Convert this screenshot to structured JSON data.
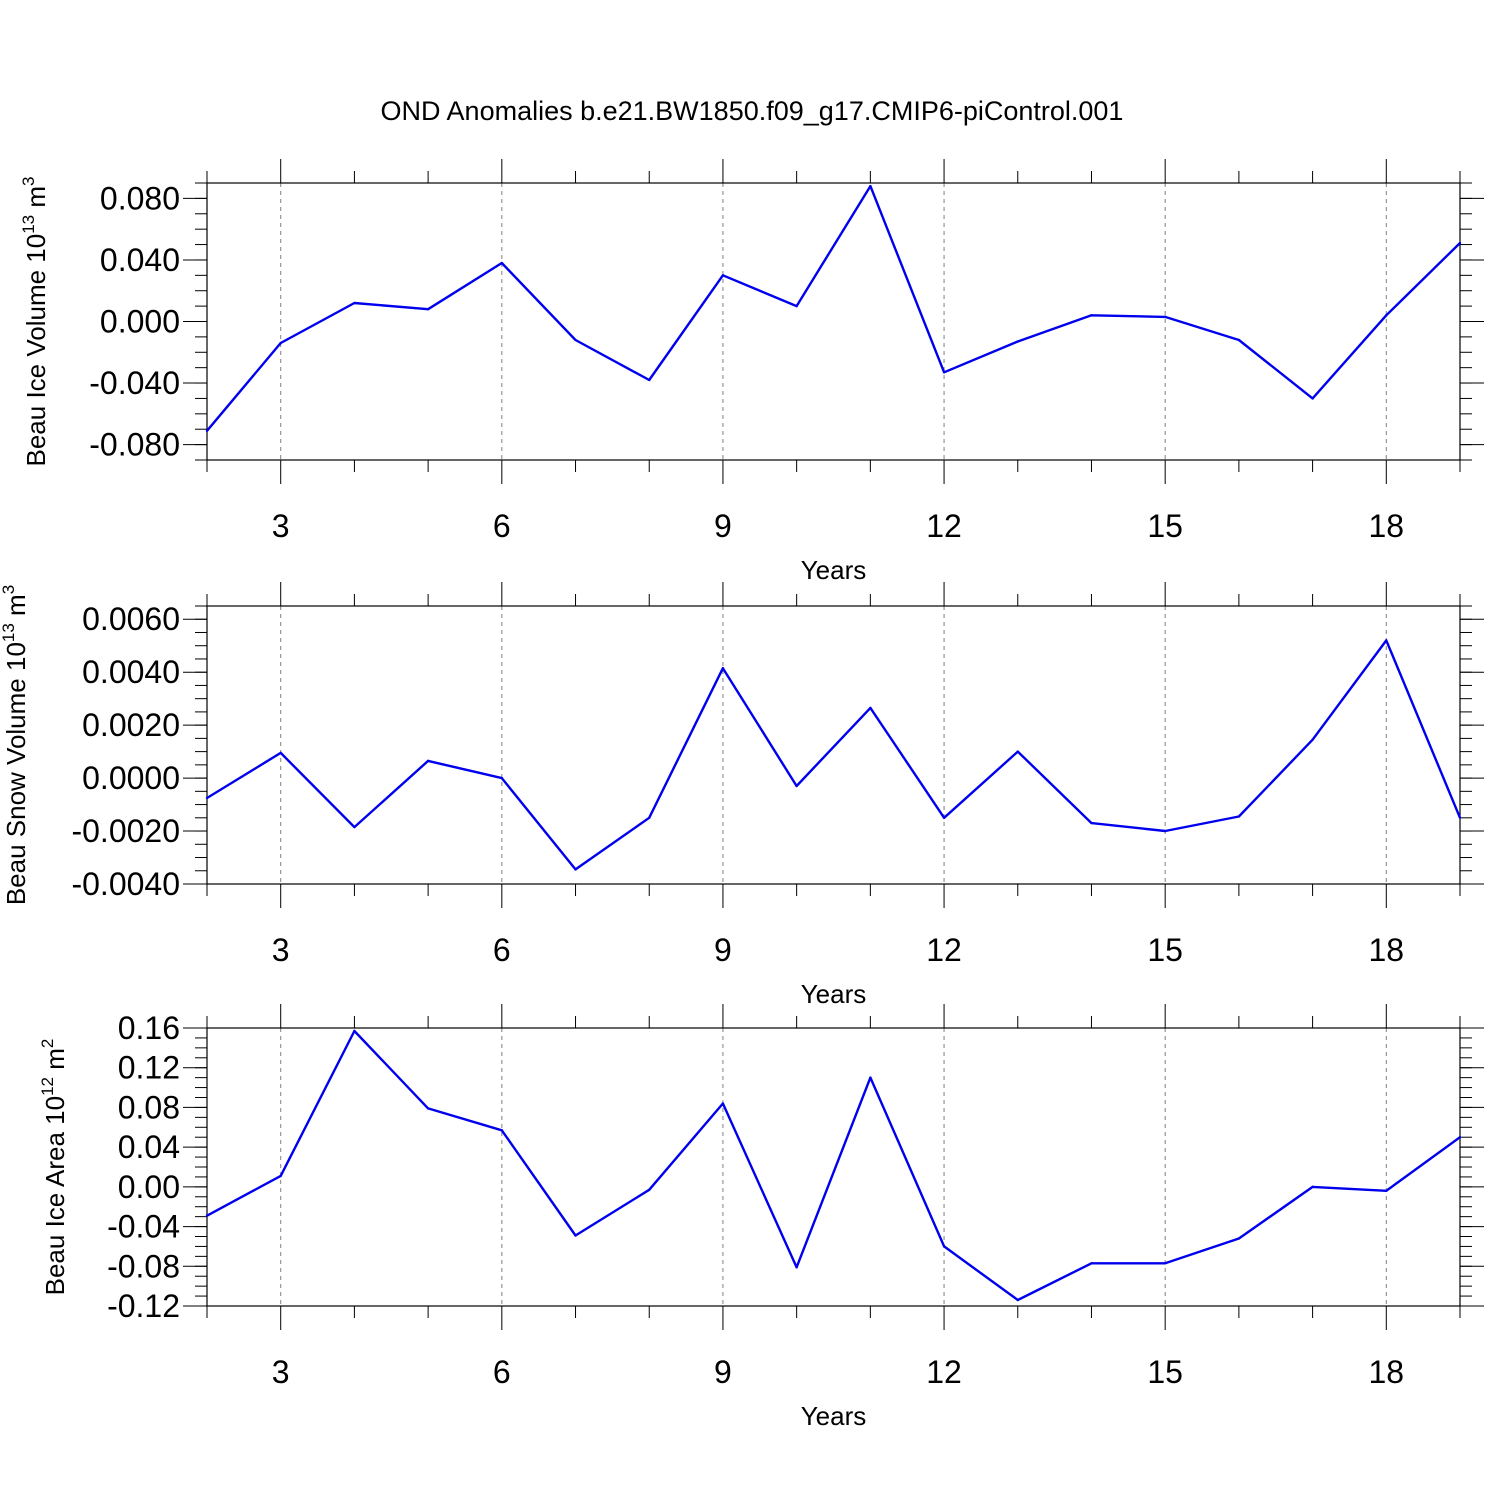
{
  "title": "OND Anomalies b.e21.BW1850.f09_g17.CMIP6-piControl.001",
  "chart_data": [
    {
      "type": "line",
      "ylabel": "Beau Ice Volume 10",
      "ylabel_sup": "13",
      "ylabel_unit": "m",
      "ylabel_unit_sup": "3",
      "xlabel": "Years",
      "xlim": [
        2,
        19
      ],
      "ylim": [
        -0.09,
        0.09
      ],
      "yticks": [
        -0.08,
        -0.04,
        0.0,
        0.04,
        0.08
      ],
      "ytick_labels": [
        "-0.080",
        "-0.040",
        "0.000",
        "0.040",
        "0.080"
      ],
      "yminor_step": 0.01,
      "xticks": [
        3,
        6,
        9,
        12,
        15,
        18
      ],
      "xtick_labels": [
        "3",
        "6",
        "9",
        "12",
        "15",
        "18"
      ],
      "line_color": "#0000ee",
      "x": [
        2,
        3,
        4,
        5,
        6,
        7,
        8,
        9,
        10,
        11,
        12,
        13,
        14,
        15,
        16,
        17,
        18,
        19
      ],
      "y": [
        -0.071,
        -0.014,
        0.012,
        0.008,
        0.038,
        -0.012,
        -0.038,
        0.03,
        0.01,
        0.088,
        -0.033,
        -0.013,
        0.004,
        0.003,
        -0.012,
        -0.05,
        0.004,
        0.051
      ]
    },
    {
      "type": "line",
      "ylabel": "Beau Snow Volume 10",
      "ylabel_sup": "13",
      "ylabel_unit": "m",
      "ylabel_unit_sup": "3",
      "xlabel": "Years",
      "xlim": [
        2,
        19
      ],
      "ylim": [
        -0.004,
        0.0065
      ],
      "yticks": [
        -0.004,
        -0.002,
        0.0,
        0.002,
        0.004,
        0.006
      ],
      "ytick_labels": [
        "-0.0040",
        "-0.0020",
        "0.0000",
        "0.0020",
        "0.0040",
        "0.0060"
      ],
      "yminor_step": 0.0005,
      "xticks": [
        3,
        6,
        9,
        12,
        15,
        18
      ],
      "xtick_labels": [
        "3",
        "6",
        "9",
        "12",
        "15",
        "18"
      ],
      "line_color": "#0000ee",
      "x": [
        2,
        3,
        4,
        5,
        6,
        7,
        8,
        9,
        10,
        11,
        12,
        13,
        14,
        15,
        16,
        17,
        18,
        19
      ],
      "y": [
        -0.00075,
        0.00095,
        -0.00185,
        0.00065,
        0.0,
        -0.00345,
        -0.0015,
        0.00415,
        -0.0003,
        0.00265,
        -0.0015,
        0.001,
        -0.0017,
        -0.002,
        -0.00145,
        0.00145,
        0.0052,
        -0.0015
      ]
    },
    {
      "type": "line",
      "ylabel": "Beau Ice Area 10",
      "ylabel_sup": "12",
      "ylabel_unit": "m",
      "ylabel_unit_sup": "2",
      "xlabel": "Years",
      "xlim": [
        2,
        19
      ],
      "ylim": [
        -0.12,
        0.16
      ],
      "yticks": [
        -0.12,
        -0.08,
        -0.04,
        0.0,
        0.04,
        0.08,
        0.12,
        0.16
      ],
      "ytick_labels": [
        "-0.12",
        "-0.08",
        "-0.04",
        "0.00",
        "0.04",
        "0.08",
        "0.12",
        "0.16"
      ],
      "yminor_step": 0.01,
      "xticks": [
        3,
        6,
        9,
        12,
        15,
        18
      ],
      "xtick_labels": [
        "3",
        "6",
        "9",
        "12",
        "15",
        "18"
      ],
      "line_color": "#0000ee",
      "x": [
        2,
        3,
        4,
        5,
        6,
        7,
        8,
        9,
        10,
        11,
        12,
        13,
        14,
        15,
        16,
        17,
        18,
        19
      ],
      "y": [
        -0.029,
        0.011,
        0.157,
        0.079,
        0.057,
        -0.049,
        -0.003,
        0.084,
        -0.081,
        0.11,
        -0.06,
        -0.114,
        -0.077,
        -0.077,
        -0.052,
        0.0,
        -0.004,
        0.05
      ]
    }
  ]
}
